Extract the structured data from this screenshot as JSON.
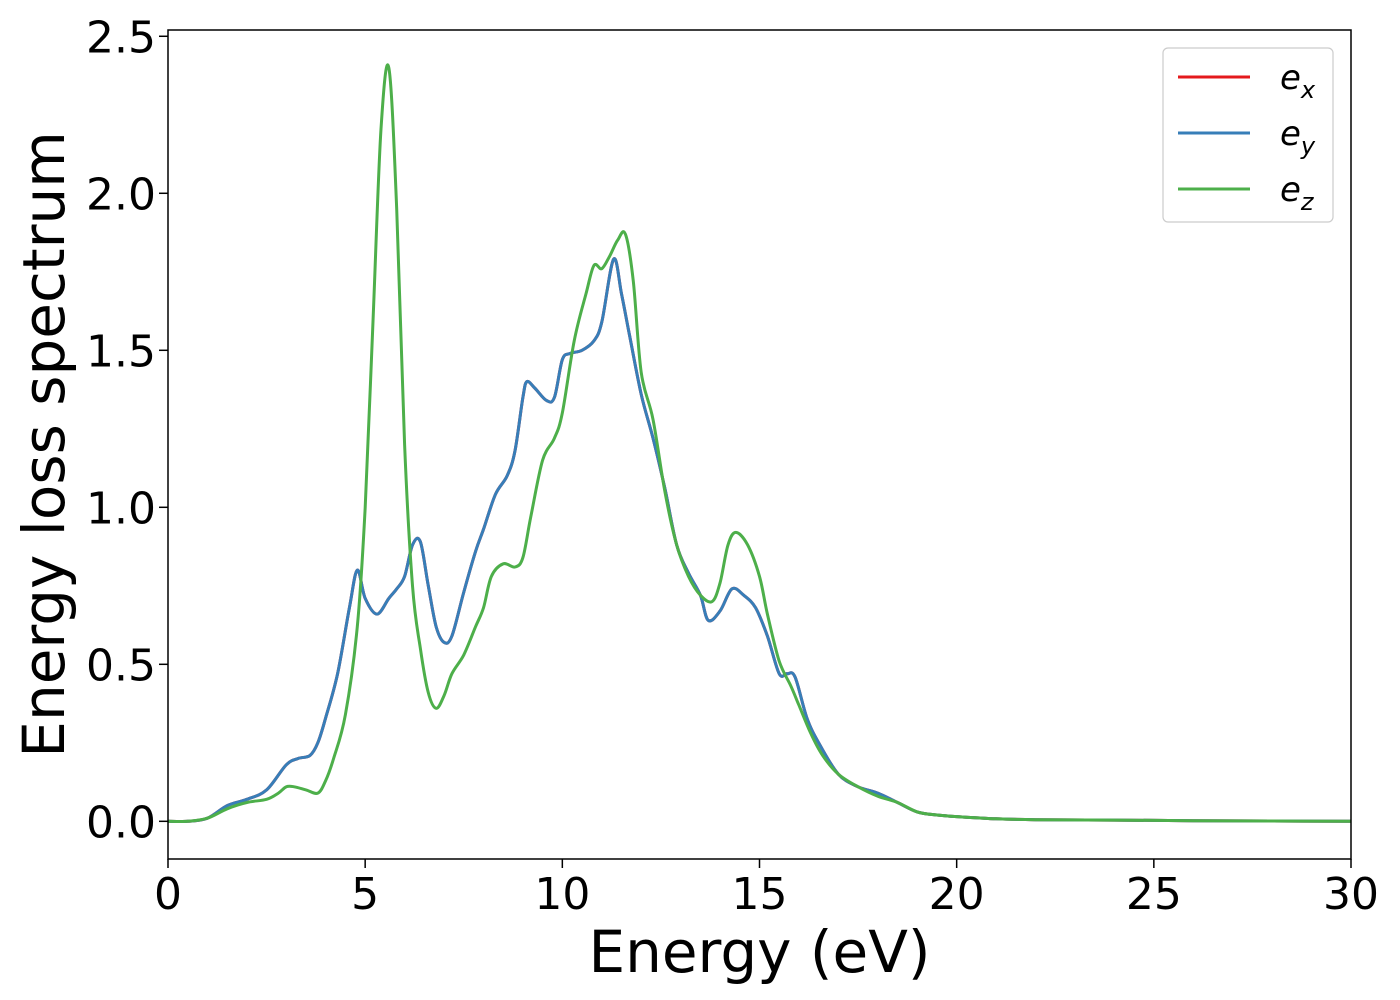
{
  "chart_data": {
    "type": "line",
    "xlabel": "Energy (eV)",
    "ylabel": "Energy loss spectrum",
    "xlim": [
      0,
      30
    ],
    "ylim": [
      -0.12,
      2.52
    ],
    "xticks": [
      "0",
      "5",
      "10",
      "15",
      "20",
      "25",
      "30"
    ],
    "yticks": [
      "0.0",
      "0.5",
      "1.0",
      "1.5",
      "2.0",
      "2.5"
    ],
    "xtick_values": [
      0,
      5,
      10,
      15,
      20,
      25,
      30
    ],
    "ytick_values": [
      0.0,
      0.5,
      1.0,
      1.5,
      2.0,
      2.5
    ],
    "grid": false,
    "legend_position": "top-right",
    "series": [
      {
        "name": "e_x",
        "base": "e",
        "sub": "x",
        "color": "#e41a1c",
        "x": [
          0,
          0.5,
          1.0,
          1.5,
          2.0,
          2.5,
          3.0,
          3.3,
          3.6,
          3.8,
          4.0,
          4.3,
          4.6,
          4.8,
          5.0,
          5.3,
          5.6,
          5.8,
          6.0,
          6.2,
          6.4,
          6.6,
          6.8,
          7.0,
          7.2,
          7.5,
          7.8,
          8.0,
          8.3,
          8.6,
          8.8,
          9.0,
          9.1,
          9.3,
          9.6,
          9.8,
          10.0,
          10.2,
          10.5,
          10.8,
          11.0,
          11.3,
          11.5,
          11.7,
          12.0,
          12.3,
          12.6,
          12.9,
          13.2,
          13.5,
          13.7,
          14.0,
          14.3,
          14.6,
          14.9,
          15.2,
          15.5,
          15.7,
          15.9,
          16.2,
          16.5,
          17.0,
          17.5,
          18.0,
          18.5,
          19.0,
          19.5,
          20.0,
          21.0,
          22.0,
          24.0,
          26.0,
          28.0,
          30.0
        ],
        "y": [
          0.0,
          0.0,
          0.01,
          0.05,
          0.07,
          0.1,
          0.18,
          0.2,
          0.21,
          0.25,
          0.33,
          0.47,
          0.68,
          0.8,
          0.71,
          0.66,
          0.71,
          0.74,
          0.78,
          0.88,
          0.89,
          0.75,
          0.62,
          0.57,
          0.59,
          0.73,
          0.86,
          0.93,
          1.04,
          1.1,
          1.18,
          1.35,
          1.4,
          1.38,
          1.34,
          1.35,
          1.47,
          1.49,
          1.5,
          1.53,
          1.59,
          1.79,
          1.68,
          1.55,
          1.36,
          1.22,
          1.06,
          0.88,
          0.79,
          0.72,
          0.64,
          0.67,
          0.74,
          0.72,
          0.68,
          0.59,
          0.47,
          0.47,
          0.46,
          0.33,
          0.25,
          0.15,
          0.11,
          0.09,
          0.06,
          0.03,
          0.02,
          0.015,
          0.008,
          0.005,
          0.004,
          0.002,
          0.001,
          0.0
        ]
      },
      {
        "name": "e_y",
        "base": "e",
        "sub": "y",
        "color": "#377eb8",
        "x": [
          0,
          0.5,
          1.0,
          1.5,
          2.0,
          2.5,
          3.0,
          3.3,
          3.6,
          3.8,
          4.0,
          4.3,
          4.6,
          4.8,
          5.0,
          5.3,
          5.6,
          5.8,
          6.0,
          6.2,
          6.4,
          6.6,
          6.8,
          7.0,
          7.2,
          7.5,
          7.8,
          8.0,
          8.3,
          8.6,
          8.8,
          9.0,
          9.1,
          9.3,
          9.6,
          9.8,
          10.0,
          10.2,
          10.5,
          10.8,
          11.0,
          11.3,
          11.5,
          11.7,
          12.0,
          12.3,
          12.6,
          12.9,
          13.2,
          13.5,
          13.7,
          14.0,
          14.3,
          14.6,
          14.9,
          15.2,
          15.5,
          15.7,
          15.9,
          16.2,
          16.5,
          17.0,
          17.5,
          18.0,
          18.5,
          19.0,
          19.5,
          20.0,
          21.0,
          22.0,
          24.0,
          26.0,
          28.0,
          30.0
        ],
        "y": [
          0.0,
          0.0,
          0.01,
          0.05,
          0.07,
          0.1,
          0.18,
          0.2,
          0.21,
          0.25,
          0.33,
          0.47,
          0.68,
          0.8,
          0.71,
          0.66,
          0.71,
          0.74,
          0.78,
          0.88,
          0.89,
          0.75,
          0.62,
          0.57,
          0.59,
          0.73,
          0.86,
          0.93,
          1.04,
          1.1,
          1.18,
          1.35,
          1.4,
          1.38,
          1.34,
          1.35,
          1.47,
          1.49,
          1.5,
          1.53,
          1.59,
          1.79,
          1.68,
          1.55,
          1.36,
          1.22,
          1.06,
          0.88,
          0.79,
          0.72,
          0.64,
          0.67,
          0.74,
          0.72,
          0.68,
          0.59,
          0.47,
          0.47,
          0.46,
          0.33,
          0.25,
          0.15,
          0.11,
          0.09,
          0.06,
          0.03,
          0.02,
          0.015,
          0.008,
          0.005,
          0.004,
          0.002,
          0.001,
          0.0
        ]
      },
      {
        "name": "e_z",
        "base": "e",
        "sub": "z",
        "color": "#4daf4a",
        "x": [
          0,
          0.5,
          1.0,
          1.5,
          2.0,
          2.5,
          2.8,
          3.0,
          3.2,
          3.5,
          3.8,
          4.0,
          4.2,
          4.5,
          4.8,
          5.0,
          5.2,
          5.4,
          5.6,
          5.8,
          6.0,
          6.2,
          6.4,
          6.6,
          6.8,
          7.0,
          7.2,
          7.5,
          7.8,
          8.0,
          8.2,
          8.5,
          8.8,
          9.0,
          9.2,
          9.5,
          9.8,
          10.0,
          10.3,
          10.6,
          10.8,
          11.0,
          11.2,
          11.4,
          11.6,
          11.8,
          12.0,
          12.3,
          12.6,
          12.9,
          13.2,
          13.5,
          13.8,
          14.0,
          14.2,
          14.4,
          14.7,
          15.0,
          15.2,
          15.5,
          15.8,
          16.0,
          16.3,
          16.6,
          17.0,
          17.5,
          18.0,
          18.5,
          19.0,
          19.5,
          20.0,
          21.0,
          22.0,
          24.0,
          26.0,
          28.0,
          30.0
        ],
        "y": [
          0.0,
          0.0,
          0.01,
          0.04,
          0.06,
          0.07,
          0.09,
          0.11,
          0.11,
          0.1,
          0.09,
          0.13,
          0.2,
          0.34,
          0.62,
          1.0,
          1.6,
          2.2,
          2.4,
          1.95,
          1.2,
          0.75,
          0.55,
          0.41,
          0.36,
          0.4,
          0.47,
          0.53,
          0.62,
          0.68,
          0.78,
          0.82,
          0.81,
          0.84,
          0.97,
          1.15,
          1.22,
          1.3,
          1.53,
          1.68,
          1.77,
          1.76,
          1.8,
          1.85,
          1.87,
          1.72,
          1.43,
          1.28,
          1.05,
          0.88,
          0.78,
          0.72,
          0.7,
          0.76,
          0.88,
          0.92,
          0.88,
          0.78,
          0.66,
          0.51,
          0.43,
          0.37,
          0.28,
          0.21,
          0.15,
          0.11,
          0.08,
          0.06,
          0.03,
          0.02,
          0.015,
          0.008,
          0.005,
          0.004,
          0.002,
          0.001,
          0.0
        ]
      }
    ]
  }
}
